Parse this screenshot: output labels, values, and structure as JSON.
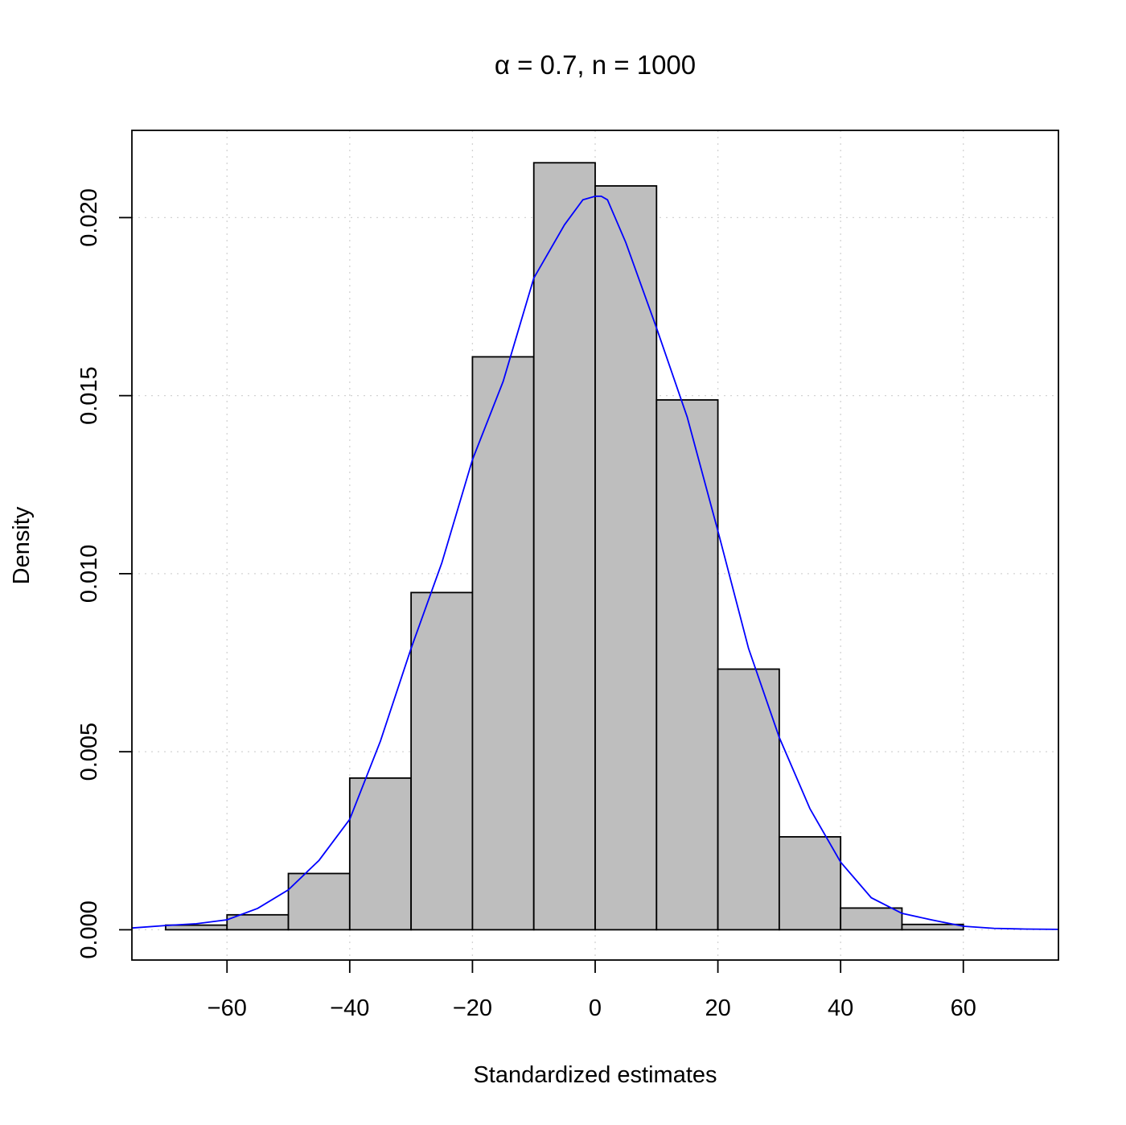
{
  "chart_data": {
    "type": "bar",
    "title": "α = 0.7, n = 1000",
    "xlabel": "Standardized estimates",
    "ylabel": "Density",
    "xlim": [
      -75.5,
      75.5
    ],
    "ylim": [
      -0.00085,
      0.02245
    ],
    "x_ticks": [
      -60,
      -40,
      -20,
      0,
      20,
      40,
      60
    ],
    "x_tick_labels": [
      "−60",
      "−40",
      "−20",
      "0",
      "20",
      "40",
      "60"
    ],
    "y_ticks": [
      0,
      0.005,
      0.01,
      0.015,
      0.02
    ],
    "y_tick_labels": [
      "0.000",
      "0.005",
      "0.010",
      "0.015",
      "0.020"
    ],
    "grid": true,
    "bins": [
      {
        "x0": -70,
        "x1": -60,
        "density": 0.00013
      },
      {
        "x0": -60,
        "x1": -50,
        "density": 0.00042
      },
      {
        "x0": -50,
        "x1": -40,
        "density": 0.00158
      },
      {
        "x0": -40,
        "x1": -30,
        "density": 0.00426
      },
      {
        "x0": -30,
        "x1": -20,
        "density": 0.00947
      },
      {
        "x0": -20,
        "x1": -10,
        "density": 0.01609
      },
      {
        "x0": -10,
        "x1": 0,
        "density": 0.02154
      },
      {
        "x0": 0,
        "x1": 10,
        "density": 0.02089
      },
      {
        "x0": 10,
        "x1": 20,
        "density": 0.01488
      },
      {
        "x0": 20,
        "x1": 30,
        "density": 0.00732
      },
      {
        "x0": 30,
        "x1": 40,
        "density": 0.00261
      },
      {
        "x0": 40,
        "x1": 50,
        "density": 0.00061
      },
      {
        "x0": 50,
        "x1": 60,
        "density": 0.00015
      }
    ],
    "density_curve": {
      "color": "#0000ff",
      "x": [
        -75.5,
        -70,
        -65,
        -60,
        -55,
        -50,
        -45,
        -40,
        -35,
        -30,
        -25,
        -20,
        -15,
        -10,
        -5,
        -2,
        0,
        1,
        2,
        5,
        10,
        15,
        20,
        25,
        30,
        35,
        40,
        45,
        50,
        55,
        60,
        65,
        70,
        75.5
      ],
      "y": [
        5e-05,
        0.00012,
        0.00017,
        0.00028,
        0.0006,
        0.00112,
        0.00195,
        0.0031,
        0.0053,
        0.0079,
        0.0103,
        0.0132,
        0.0154,
        0.0183,
        0.0198,
        0.0205,
        0.0206,
        0.0206,
        0.0205,
        0.0193,
        0.0169,
        0.0144,
        0.0112,
        0.0079,
        0.0054,
        0.0034,
        0.0019,
        0.0009,
        0.00046,
        0.00027,
        0.0001,
        4e-05,
        2e-05,
        1e-05
      ]
    },
    "colors": {
      "bar_fill": "#bebebe",
      "bar_stroke": "#000000",
      "grid": "#d3d3d3",
      "curve": "#0000ff"
    }
  }
}
